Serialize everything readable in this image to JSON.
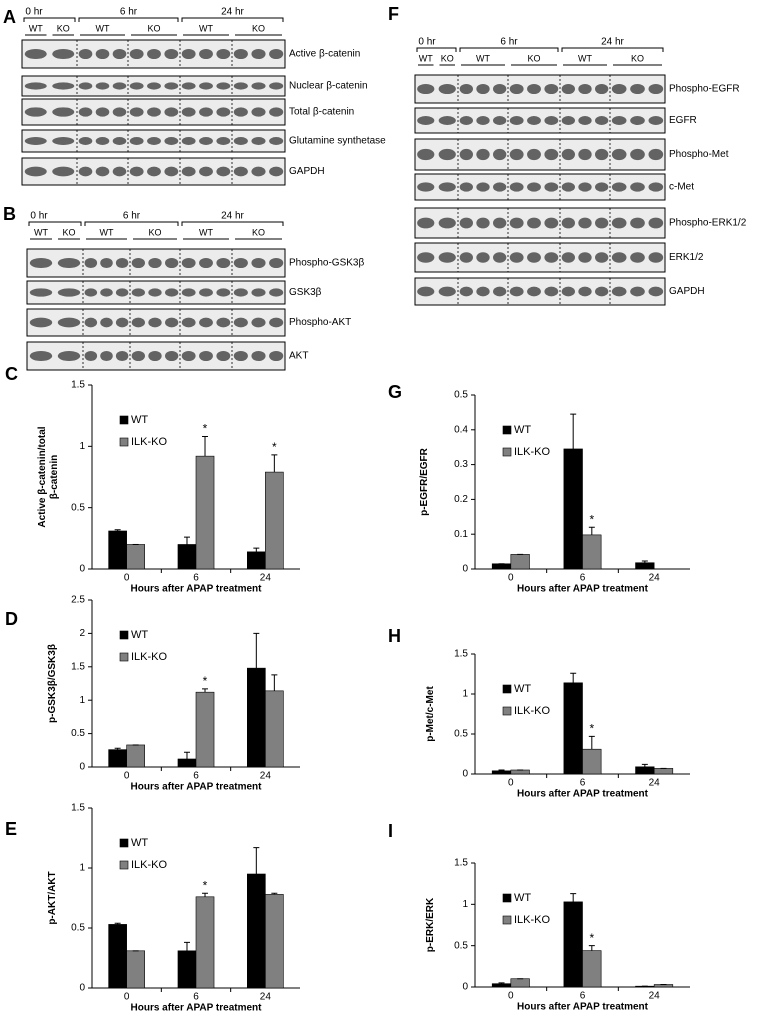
{
  "blots": [
    {
      "label": "A",
      "times": [
        {
          "text": "0 hr",
          "groups": [
            "WT",
            "KO"
          ]
        },
        {
          "text": "6 hr",
          "groups": [
            "WT",
            "KO"
          ]
        },
        {
          "text": "24 hr",
          "groups": [
            "WT",
            "KO"
          ]
        }
      ],
      "rows": [
        "Active β-catenin",
        "Nuclear β-catenin",
        "Total β-catenin",
        "Glutamine synthetase",
        "GAPDH"
      ]
    },
    {
      "label": "B",
      "times": [
        {
          "text": "0 hr",
          "groups": [
            "WT",
            "KO"
          ]
        },
        {
          "text": "6 hr",
          "groups": [
            "WT",
            "KO"
          ]
        },
        {
          "text": "24 hr",
          "groups": [
            "WT",
            "KO"
          ]
        }
      ],
      "rows": [
        "Phospho-GSK3β",
        "GSK3β",
        "Phospho-AKT",
        "AKT"
      ]
    },
    {
      "label": "F",
      "times": [
        {
          "text": "0 hr",
          "groups": [
            "WT",
            "KO"
          ]
        },
        {
          "text": "6 hr",
          "groups": [
            "WT",
            "KO"
          ]
        },
        {
          "text": "24 hr",
          "groups": [
            "WT",
            "KO"
          ]
        }
      ],
      "rows": [
        "Phospho-EGFR",
        "EGFR",
        "Phospho-Met",
        "c-Met",
        "Phospho-ERK1/2",
        "ERK1/2",
        "GAPDH"
      ]
    }
  ],
  "chart_data": [
    {
      "type": "bar",
      "label": "C",
      "ylabel": [
        "Active β-catenin/total",
        "β-catenin"
      ],
      "xlabel": "Hours after APAP treatment",
      "categories": [
        "0",
        "6",
        "24"
      ],
      "ylim": [
        0,
        1.5
      ],
      "yticks": [
        0,
        0.5,
        1,
        1.5
      ],
      "series": [
        {
          "name": "WT",
          "color": "#000000",
          "values": [
            0.31,
            0.2,
            0.14
          ],
          "errors": [
            0.01,
            0.06,
            0.03
          ]
        },
        {
          "name": "ILK-KO",
          "color": "#808080",
          "values": [
            0.2,
            0.92,
            0.79
          ],
          "errors": [
            0,
            0.16,
            0.14
          ]
        }
      ],
      "annotations": [
        {
          "text": "*",
          "series": 1,
          "index": 1
        },
        {
          "text": "*",
          "series": 1,
          "index": 2
        }
      ]
    },
    {
      "type": "bar",
      "label": "D",
      "ylabel": [
        "p-GSK3β/GSK3β"
      ],
      "xlabel": "Hours after APAP treatment",
      "categories": [
        "0",
        "6",
        "24"
      ],
      "ylim": [
        0,
        2.5
      ],
      "yticks": [
        0,
        0.5,
        1,
        1.5,
        2,
        2.5
      ],
      "series": [
        {
          "name": "WT",
          "color": "#000000",
          "values": [
            0.26,
            0.12,
            1.48
          ],
          "errors": [
            0.02,
            0.1,
            0.52
          ]
        },
        {
          "name": "ILK-KO",
          "color": "#808080",
          "values": [
            0.33,
            1.12,
            1.14
          ],
          "errors": [
            0,
            0.05,
            0.24
          ]
        }
      ],
      "annotations": [
        {
          "text": "*",
          "series": 1,
          "index": 1
        }
      ]
    },
    {
      "type": "bar",
      "label": "E",
      "ylabel": [
        "p-AKT/AKT"
      ],
      "xlabel": "Hours after APAP treatment",
      "categories": [
        "0",
        "6",
        "24"
      ],
      "ylim": [
        0,
        1.5
      ],
      "yticks": [
        0,
        0.5,
        1,
        1.5
      ],
      "series": [
        {
          "name": "WT",
          "color": "#000000",
          "values": [
            0.53,
            0.31,
            0.95
          ],
          "errors": [
            0.01,
            0.07,
            0.22
          ]
        },
        {
          "name": "ILK-KO",
          "color": "#808080",
          "values": [
            0.31,
            0.76,
            0.78
          ],
          "errors": [
            0,
            0.03,
            0.01
          ]
        }
      ],
      "annotations": [
        {
          "text": "*",
          "series": 1,
          "index": 1
        }
      ]
    },
    {
      "type": "bar",
      "label": "G",
      "ylabel": [
        "p-EGFR/EGFR"
      ],
      "xlabel": "Hours after APAP treatment",
      "categories": [
        "0",
        "6",
        "24"
      ],
      "ylim": [
        0,
        0.5
      ],
      "yticks": [
        0,
        0.1,
        0.2,
        0.3,
        0.4,
        0.5
      ],
      "series": [
        {
          "name": "WT",
          "color": "#000000",
          "values": [
            0.015,
            0.345,
            0.018
          ],
          "errors": [
            0,
            0.1,
            0.005
          ]
        },
        {
          "name": "ILK-KO",
          "color": "#808080",
          "values": [
            0.042,
            0.098,
            0
          ],
          "errors": [
            0,
            0.022,
            0
          ]
        }
      ],
      "annotations": [
        {
          "text": "*",
          "series": 1,
          "index": 1
        }
      ]
    },
    {
      "type": "bar",
      "label": "H",
      "ylabel": [
        "p-Met/c-Met"
      ],
      "xlabel": "Hours after APAP treatment",
      "categories": [
        "0",
        "6",
        "24"
      ],
      "ylim": [
        0,
        1.5
      ],
      "yticks": [
        0,
        0.5,
        1,
        1.5
      ],
      "series": [
        {
          "name": "WT",
          "color": "#000000",
          "values": [
            0.04,
            1.14,
            0.09
          ],
          "errors": [
            0.01,
            0.12,
            0.03
          ]
        },
        {
          "name": "ILK-KO",
          "color": "#808080",
          "values": [
            0.05,
            0.31,
            0.07
          ],
          "errors": [
            0,
            0.16,
            0
          ]
        }
      ],
      "annotations": [
        {
          "text": "*",
          "series": 1,
          "index": 1
        }
      ]
    },
    {
      "type": "bar",
      "label": "I",
      "ylabel": [
        "p-ERK/ERK"
      ],
      "xlabel": "Hours after APAP treatment",
      "categories": [
        "0",
        "6",
        "24"
      ],
      "ylim": [
        0,
        1.5
      ],
      "yticks": [
        0,
        0.5,
        1,
        1.5
      ],
      "series": [
        {
          "name": "WT",
          "color": "#000000",
          "values": [
            0.04,
            1.03,
            0.01
          ],
          "errors": [
            0.01,
            0.1,
            0
          ]
        },
        {
          "name": "ILK-KO",
          "color": "#808080",
          "values": [
            0.1,
            0.44,
            0.03
          ],
          "errors": [
            0,
            0.06,
            0
          ]
        }
      ],
      "annotations": [
        {
          "text": "*",
          "series": 1,
          "index": 1
        }
      ]
    }
  ]
}
